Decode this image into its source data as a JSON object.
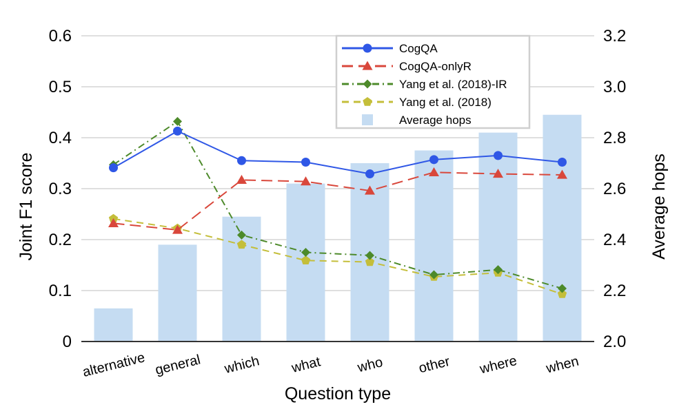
{
  "chart_data": {
    "type": "bar+line",
    "xlabel": "Question type",
    "ylabel_left": "Joint F1 score",
    "ylabel_right": "Average hops",
    "categories": [
      "alternative",
      "general",
      "which",
      "what",
      "who",
      "other",
      "where",
      "when"
    ],
    "y_left": {
      "range": [
        0,
        0.6
      ],
      "ticks": [
        "0",
        "0.1",
        "0.2",
        "0.3",
        "0.4",
        "0.5",
        "0.6"
      ]
    },
    "y_right": {
      "range": [
        2.0,
        3.2
      ],
      "ticks": [
        "2.0",
        "2.2",
        "2.4",
        "2.6",
        "2.8",
        "3.0",
        "3.2"
      ]
    },
    "grid": true,
    "legend_position": "top-right",
    "bars": {
      "name": "Average hops",
      "axis": "right",
      "color": "#c5dcf2",
      "values": [
        2.13,
        2.38,
        2.49,
        2.62,
        2.7,
        2.75,
        2.82,
        2.89
      ]
    },
    "series": [
      {
        "name": "CogQA",
        "axis": "left",
        "color": "#2f57e6",
        "marker": "circle",
        "dash": "solid",
        "values": [
          0.341,
          0.413,
          0.355,
          0.352,
          0.329,
          0.357,
          0.365,
          0.352
        ]
      },
      {
        "name": "CogQA-onlyR",
        "axis": "left",
        "color": "#d9473b",
        "marker": "triangle",
        "dash": "long",
        "values": [
          0.232,
          0.219,
          0.317,
          0.314,
          0.296,
          0.332,
          0.329,
          0.327
        ]
      },
      {
        "name": "Yang et al. (2018)-IR",
        "axis": "left",
        "color": "#4d8a2a",
        "marker": "diamond",
        "dash": "dashdot",
        "values": [
          0.347,
          0.432,
          0.209,
          0.175,
          0.169,
          0.131,
          0.141,
          0.104
        ]
      },
      {
        "name": "Yang et al. (2018)",
        "axis": "left",
        "color": "#c4be3a",
        "marker": "pentagon",
        "dash": "dash",
        "values": [
          0.241,
          0.222,
          0.19,
          0.159,
          0.156,
          0.127,
          0.135,
          0.093
        ]
      }
    ]
  }
}
